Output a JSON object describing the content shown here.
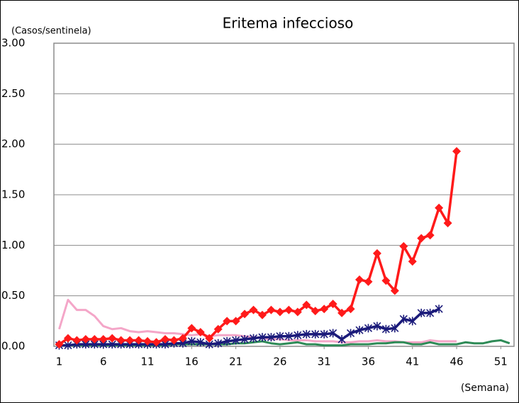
{
  "chart_data": {
    "type": "line",
    "title": "Eritema infeccioso",
    "y_label": "(Casos/sentinela)",
    "x_label": "(Semana)",
    "xlim": [
      0.4,
      52.5
    ],
    "xticks": [
      1,
      6,
      11,
      16,
      21,
      26,
      31,
      36,
      41,
      46,
      51
    ],
    "ylim": [
      0,
      3
    ],
    "yticks": [
      {
        "value": 0,
        "label": "0.00"
      },
      {
        "value": 0.5,
        "label": "0.50"
      },
      {
        "value": 1,
        "label": "1.00"
      },
      {
        "value": 1.5,
        "label": "1.50"
      },
      {
        "value": 2,
        "label": "2.00"
      },
      {
        "value": 2.5,
        "label": "2.50"
      },
      {
        "value": 3,
        "label": "3.00"
      }
    ],
    "grid": true,
    "series": [
      {
        "color": "#f4a6c8",
        "marker": "none",
        "x": [
          1,
          2,
          3,
          4,
          5,
          6,
          7,
          8,
          9,
          10,
          11,
          12,
          13,
          14,
          15,
          16,
          17,
          18,
          19,
          20,
          21,
          22,
          23,
          24,
          25,
          26,
          27,
          28,
          29,
          30,
          31,
          32,
          33,
          34,
          35,
          36,
          37,
          38,
          39,
          40,
          41,
          42,
          43,
          44,
          45,
          46
        ],
        "values": [
          0.17,
          0.46,
          0.36,
          0.36,
          0.3,
          0.2,
          0.17,
          0.18,
          0.15,
          0.14,
          0.15,
          0.14,
          0.13,
          0.13,
          0.12,
          0.11,
          0.12,
          0.1,
          0.11,
          0.11,
          0.11,
          0.1,
          0.09,
          0.08,
          0.07,
          0.07,
          0.06,
          0.06,
          0.06,
          0.05,
          0.05,
          0.05,
          0.04,
          0.04,
          0.05,
          0.05,
          0.06,
          0.05,
          0.05,
          0.04,
          0.04,
          0.04,
          0.06,
          0.05,
          0.05,
          0.05
        ]
      },
      {
        "color": "#2e8b57",
        "marker": "none",
        "x": [
          1,
          2,
          3,
          4,
          5,
          6,
          7,
          8,
          9,
          10,
          11,
          12,
          13,
          14,
          15,
          16,
          17,
          18,
          19,
          20,
          21,
          22,
          23,
          24,
          25,
          26,
          27,
          28,
          29,
          30,
          31,
          32,
          33,
          34,
          35,
          36,
          37,
          38,
          39,
          40,
          41,
          42,
          43,
          44,
          45,
          46,
          47,
          48,
          49,
          50,
          51,
          52
        ],
        "values": [
          0.01,
          0.01,
          0.01,
          0.01,
          0.01,
          0.01,
          0.01,
          0.01,
          0.01,
          0.01,
          0.01,
          0.01,
          0.01,
          0.02,
          0.02,
          0.02,
          0.02,
          0.02,
          0.02,
          0.02,
          0.03,
          0.03,
          0.04,
          0.05,
          0.03,
          0.02,
          0.03,
          0.04,
          0.02,
          0.02,
          0.01,
          0.01,
          0.01,
          0.02,
          0.02,
          0.02,
          0.03,
          0.03,
          0.04,
          0.04,
          0.02,
          0.02,
          0.04,
          0.02,
          0.02,
          0.02,
          0.04,
          0.03,
          0.03,
          0.05,
          0.06,
          0.03
        ]
      },
      {
        "color": "#1a1a7a",
        "marker": "x",
        "x": [
          1,
          2,
          3,
          4,
          5,
          6,
          7,
          8,
          9,
          10,
          11,
          12,
          13,
          14,
          15,
          16,
          17,
          18,
          19,
          20,
          21,
          22,
          23,
          24,
          25,
          26,
          27,
          28,
          29,
          30,
          31,
          32,
          33,
          34,
          35,
          36,
          37,
          38,
          39,
          40,
          41,
          42,
          43,
          44
        ],
        "values": [
          0.01,
          0.01,
          0.02,
          0.02,
          0.02,
          0.02,
          0.02,
          0.02,
          0.02,
          0.02,
          0.02,
          0.02,
          0.02,
          0.03,
          0.03,
          0.05,
          0.04,
          0.02,
          0.03,
          0.05,
          0.06,
          0.07,
          0.08,
          0.09,
          0.09,
          0.1,
          0.1,
          0.11,
          0.12,
          0.12,
          0.12,
          0.13,
          0.07,
          0.13,
          0.16,
          0.18,
          0.2,
          0.17,
          0.18,
          0.27,
          0.25,
          0.33,
          0.33,
          0.37
        ]
      },
      {
        "color": "#ff1a1a",
        "marker": "diamond",
        "x": [
          1,
          2,
          3,
          4,
          5,
          6,
          7,
          8,
          9,
          10,
          11,
          12,
          13,
          14,
          15,
          16,
          17,
          18,
          19,
          20,
          21,
          22,
          23,
          24,
          25,
          26,
          27,
          28,
          29,
          30,
          31,
          32,
          33,
          34,
          35,
          36,
          37,
          38,
          39,
          40,
          41,
          42,
          43,
          44,
          45,
          46
        ],
        "values": [
          0.02,
          0.08,
          0.06,
          0.07,
          0.07,
          0.07,
          0.08,
          0.06,
          0.06,
          0.06,
          0.05,
          0.04,
          0.07,
          0.06,
          0.08,
          0.18,
          0.14,
          0.08,
          0.17,
          0.25,
          0.25,
          0.32,
          0.36,
          0.31,
          0.36,
          0.34,
          0.36,
          0.34,
          0.41,
          0.35,
          0.37,
          0.42,
          0.33,
          0.37,
          0.66,
          0.64,
          0.92,
          0.65,
          0.55,
          0.99,
          0.84,
          1.07,
          1.1,
          1.37,
          1.22,
          1.93
        ]
      }
    ]
  }
}
